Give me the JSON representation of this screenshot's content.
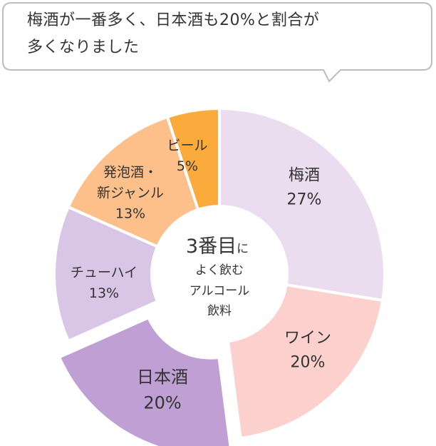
{
  "bubble": {
    "line1": "梅酒が一番多く、日本酒も20%と割合が",
    "line2": "多くなりました"
  },
  "center": {
    "line1_big": "3番目",
    "line1_small": "に",
    "line2": "よく飲む",
    "line3": "アルコール",
    "line4": "飲料"
  },
  "chart_data": {
    "type": "pie",
    "title": "",
    "slices": [
      {
        "label": [
          "梅酒"
        ],
        "value": 27,
        "value_label": "27%",
        "color": "#ecdcef",
        "exploded": false
      },
      {
        "label": [
          "ワイン"
        ],
        "value": 20,
        "value_label": "20%",
        "color": "#fcd0cc",
        "exploded": false
      },
      {
        "label": [
          "日本酒"
        ],
        "value": 20,
        "value_label": "20%",
        "color": "#bf9fd4",
        "exploded": true
      },
      {
        "label": [
          "チューハイ"
        ],
        "value": 13,
        "value_label": "13%",
        "color": "#d9c6e6",
        "exploded": false
      },
      {
        "label": [
          "発泡酒・",
          "新ジャンル"
        ],
        "value": 13,
        "value_label": "13%",
        "color": "#fdc08a",
        "exploded": false
      },
      {
        "label": [
          "ビール"
        ],
        "value": 5,
        "value_label": "5%",
        "color": "#fbaa3c",
        "exploded": false
      }
    ]
  }
}
